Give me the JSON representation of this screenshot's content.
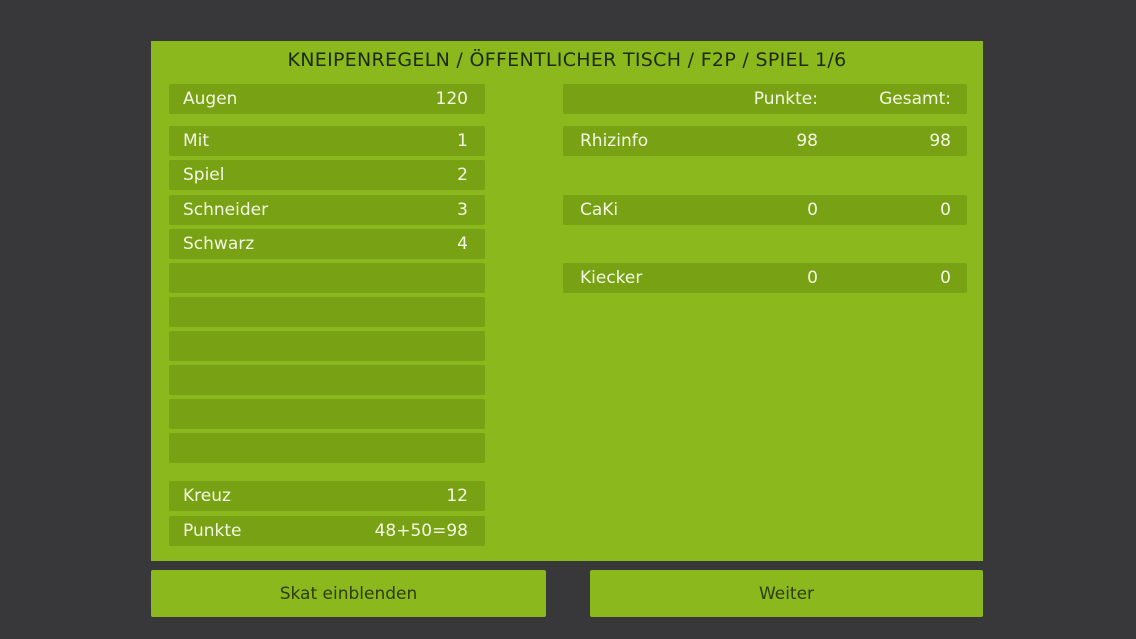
{
  "header": {
    "title": "KNEIPENREGELN / ÖFFENTLICHER TISCH / F2P / SPIEL 1/6"
  },
  "left": {
    "augen": {
      "label": "Augen",
      "value": "120"
    },
    "factors": [
      {
        "label": "Mit",
        "value": "1"
      },
      {
        "label": "Spiel",
        "value": "2"
      },
      {
        "label": "Schneider",
        "value": "3"
      },
      {
        "label": "Schwarz",
        "value": "4"
      }
    ],
    "kreuz": {
      "label": "Kreuz",
      "value": "12"
    },
    "punkte": {
      "label": "Punkte",
      "value": "48+50=98"
    }
  },
  "scoreboard": {
    "header": {
      "punkte": "Punkte:",
      "gesamt": "Gesamt:"
    },
    "players": [
      {
        "name": "Rhizinfo",
        "punkte": "98",
        "gesamt": "98"
      },
      {
        "name": "CaKi",
        "punkte": "0",
        "gesamt": "0"
      },
      {
        "name": "Kiecker",
        "punkte": "0",
        "gesamt": "0"
      }
    ]
  },
  "buttons": {
    "skat": "Skat einblenden",
    "weiter": "Weiter"
  },
  "colors": {
    "background": "#38383a",
    "panel": "#8ab81d",
    "row": "#78a214"
  }
}
